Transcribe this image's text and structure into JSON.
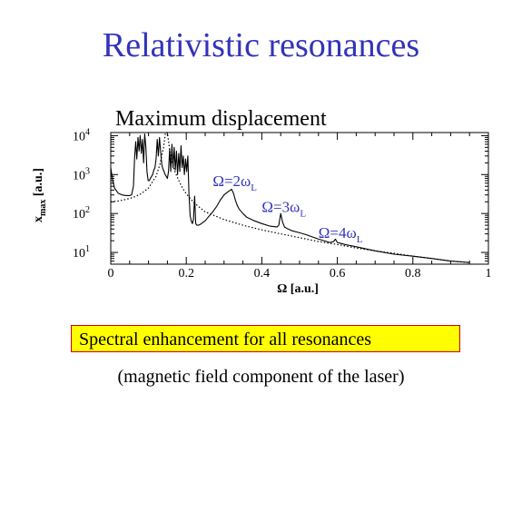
{
  "slide": {
    "title": "Relativistic resonances",
    "highlight": "Spectral enhancement for all resonances",
    "note": "(magnetic field component of the laser)",
    "colors": {
      "title": "#3333bb",
      "annotation": "#3333bb",
      "highlight_bg": "#ffff00",
      "highlight_border": "#d00000"
    }
  },
  "chart_data": {
    "type": "line",
    "title": "Maximum displacement",
    "xlabel": "Ω [a.u.]",
    "ylabel_main": "x",
    "ylabel_sub": "max",
    "ylabel_unit": "[a.u.]",
    "xlim": [
      0,
      1
    ],
    "ylim": [
      5,
      12000
    ],
    "yscale": "log",
    "xticks": [
      {
        "value": 0,
        "label": "0"
      },
      {
        "value": 0.2,
        "label": "0.2"
      },
      {
        "value": 0.4,
        "label": "0.4"
      },
      {
        "value": 0.6,
        "label": "0.6"
      },
      {
        "value": 0.8,
        "label": "0.8"
      },
      {
        "value": 1,
        "label": "1"
      }
    ],
    "yticks": [
      {
        "value": 10,
        "base": "10",
        "exp": "1"
      },
      {
        "value": 100,
        "base": "10",
        "exp": "2"
      },
      {
        "value": 1000,
        "base": "10",
        "exp": "3"
      },
      {
        "value": 10000,
        "base": "10",
        "exp": "4"
      }
    ],
    "annotations": [
      {
        "x": 0.27,
        "y": 500,
        "base": "Ω=2ω",
        "sub": "L"
      },
      {
        "x": 0.4,
        "y": 110,
        "base": "Ω=3ω",
        "sub": "L"
      },
      {
        "x": 0.55,
        "y": 24,
        "base": "Ω=4ω",
        "sub": "L"
      }
    ],
    "series": [
      {
        "style": "solid",
        "x": [
          0.0,
          0.005,
          0.01,
          0.02,
          0.03,
          0.04,
          0.05,
          0.055,
          0.06,
          0.063,
          0.066,
          0.069,
          0.072,
          0.075,
          0.078,
          0.081,
          0.084,
          0.087,
          0.09,
          0.093,
          0.096,
          0.099,
          0.102,
          0.105,
          0.108,
          0.111,
          0.114,
          0.117,
          0.12,
          0.123,
          0.126,
          0.129,
          0.132,
          0.135,
          0.138,
          0.141,
          0.144,
          0.147,
          0.15,
          0.153,
          0.156,
          0.159,
          0.162,
          0.165,
          0.168,
          0.171,
          0.174,
          0.177,
          0.18,
          0.183,
          0.186,
          0.189,
          0.192,
          0.195,
          0.198,
          0.201,
          0.204,
          0.207,
          0.21,
          0.213,
          0.216,
          0.219,
          0.222,
          0.225,
          0.228,
          0.232,
          0.236,
          0.24,
          0.25,
          0.26,
          0.27,
          0.28,
          0.29,
          0.3,
          0.31,
          0.32,
          0.325,
          0.33,
          0.335,
          0.34,
          0.35,
          0.36,
          0.38,
          0.4,
          0.42,
          0.44,
          0.445,
          0.45,
          0.455,
          0.46,
          0.47,
          0.48,
          0.5,
          0.52,
          0.55,
          0.58,
          0.59,
          0.595,
          0.6,
          0.61,
          0.62,
          0.65,
          0.7,
          0.75,
          0.8,
          0.85,
          0.9,
          0.95
        ],
        "y": [
          1500,
          700,
          450,
          330,
          300,
          290,
          290,
          300,
          500,
          2500,
          7000,
          2500,
          9000,
          4000,
          10000,
          3500,
          8000,
          2000,
          11000,
          5000,
          1200,
          700,
          700,
          800,
          900,
          1000,
          1300,
          1500,
          2500,
          8000,
          3000,
          9000,
          4000,
          1800,
          1400,
          1200,
          1000,
          900,
          800,
          1200,
          4500,
          1200,
          6000,
          1500,
          5000,
          1300,
          4000,
          1000,
          3500,
          1200,
          5500,
          1500,
          3000,
          1000,
          2500,
          1200,
          3000,
          350,
          90,
          65,
          55,
          70,
          280,
          55,
          50,
          50,
          52,
          55,
          65,
          85,
          110,
          150,
          220,
          300,
          360,
          420,
          330,
          220,
          160,
          130,
          100,
          80,
          65,
          55,
          48,
          45,
          50,
          100,
          60,
          45,
          40,
          36,
          32,
          28,
          22,
          18,
          19,
          22,
          18,
          17,
          16,
          14,
          11,
          9,
          8,
          7,
          6,
          5.5
        ]
      },
      {
        "style": "dotted",
        "x": [
          0.0,
          0.02,
          0.04,
          0.06,
          0.08,
          0.1,
          0.12,
          0.13,
          0.14,
          0.145,
          0.15,
          0.155,
          0.16,
          0.17,
          0.18,
          0.19,
          0.2,
          0.22,
          0.25,
          0.3,
          0.35,
          0.4,
          0.45,
          0.5,
          0.55,
          0.6,
          0.65,
          0.7,
          0.75,
          0.8,
          0.85,
          0.9,
          0.95
        ],
        "y": [
          200,
          210,
          230,
          260,
          320,
          450,
          900,
          1800,
          5000,
          12000,
          12000,
          5000,
          2500,
          1200,
          700,
          450,
          320,
          190,
          110,
          70,
          50,
          38,
          30,
          24,
          19,
          16,
          13,
          11,
          9.5,
          8,
          7,
          6,
          5.5
        ]
      }
    ]
  }
}
